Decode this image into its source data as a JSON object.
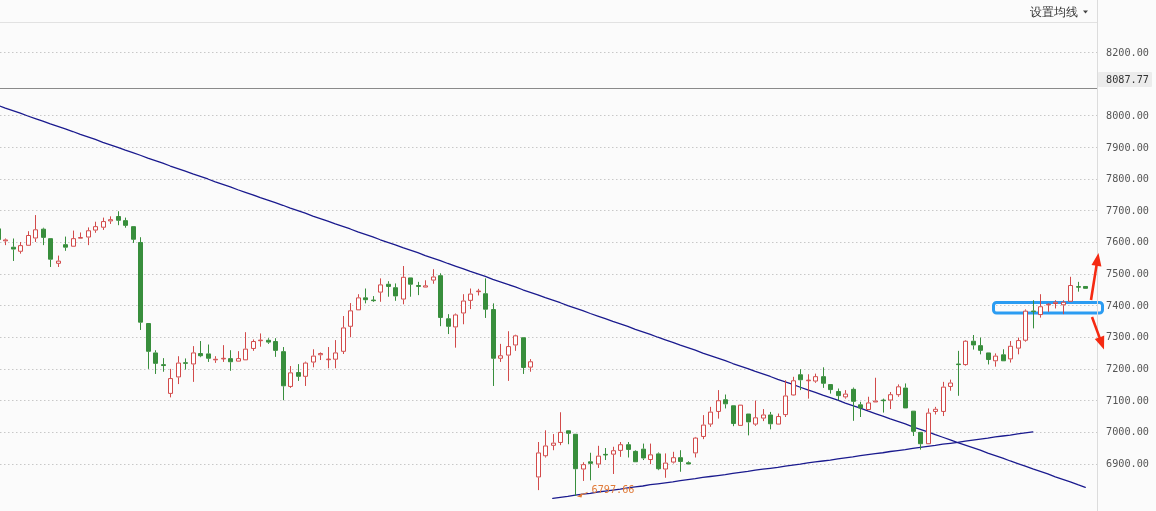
{
  "chart_data": {
    "type": "candlestick",
    "categories": [
      null,
      null,
      null,
      null,
      null,
      null,
      null,
      null,
      null,
      null,
      null,
      null,
      null,
      null,
      null,
      null,
      null,
      null,
      null,
      null,
      null,
      null,
      null,
      null,
      null,
      null,
      null,
      null,
      null,
      null,
      null,
      null,
      null,
      null,
      null,
      null,
      null,
      null,
      null,
      null,
      null,
      null,
      null,
      null,
      null,
      null,
      null,
      null,
      null,
      null,
      null,
      null,
      null,
      null,
      null,
      null,
      null,
      null,
      null,
      null,
      null,
      null,
      null,
      null,
      null,
      null,
      null,
      null,
      null,
      null,
      null,
      null,
      null,
      null,
      null,
      null,
      null,
      null,
      null,
      null,
      null,
      null,
      null,
      null,
      null,
      null,
      null,
      null,
      null,
      null,
      null,
      null,
      null,
      null,
      null,
      null,
      null,
      null,
      null,
      null,
      null,
      null,
      null,
      null,
      null,
      null,
      null,
      null,
      null,
      null,
      null,
      null,
      null,
      null,
      null,
      null,
      null,
      null,
      null,
      null,
      null,
      null,
      null,
      null,
      null,
      null,
      null,
      null,
      null,
      null,
      null,
      null,
      null,
      null,
      null,
      null,
      null,
      null,
      null,
      null,
      null,
      null,
      null,
      null,
      null,
      null
    ],
    "ohlc": [
      [
        7643,
        7646,
        7600,
        7606
      ],
      [
        7602,
        7611,
        7590,
        7608
      ],
      [
        7585,
        7611,
        7540,
        7576
      ],
      [
        7569,
        7600,
        7563,
        7590
      ],
      [
        7588,
        7634,
        7588,
        7622
      ],
      [
        7611,
        7685,
        7600,
        7640
      ],
      [
        7642,
        7645,
        7590,
        7613
      ],
      [
        7612,
        7612,
        7521,
        7544
      ],
      [
        7531,
        7557,
        7521,
        7541
      ],
      [
        7593,
        7617,
        7572,
        7582
      ],
      [
        7585,
        7636,
        7585,
        7612
      ],
      [
        7611,
        7630,
        7611,
        7615
      ],
      [
        7614,
        7646,
        7590,
        7637
      ],
      [
        7636,
        7664,
        7629,
        7650
      ],
      [
        7645,
        7677,
        7638,
        7666
      ],
      [
        7665,
        7681,
        7657,
        7672
      ],
      [
        7682,
        7697,
        7653,
        7667
      ],
      [
        7669,
        7677,
        7645,
        7651
      ],
      [
        7650,
        7650,
        7597,
        7607
      ],
      [
        7600,
        7615,
        7322,
        7345
      ],
      [
        7344,
        7344,
        7199,
        7253
      ],
      [
        7251,
        7258,
        7183,
        7215
      ],
      [
        7214,
        7233,
        7190,
        7208
      ],
      [
        7120,
        7199,
        7109,
        7170
      ],
      [
        7172,
        7239,
        7151,
        7219
      ],
      [
        7220,
        7232,
        7197,
        7215
      ],
      [
        7213,
        7271,
        7158,
        7251
      ],
      [
        7249,
        7287,
        7236,
        7239
      ],
      [
        7248,
        7276,
        7221,
        7231
      ],
      [
        7226,
        7239,
        7218,
        7231
      ],
      [
        7230,
        7274,
        7221,
        7233
      ],
      [
        7233,
        7258,
        7193,
        7220
      ],
      [
        7222,
        7255,
        7222,
        7233
      ],
      [
        7226,
        7315,
        7226,
        7263
      ],
      [
        7262,
        7292,
        7256,
        7287
      ],
      [
        7287,
        7311,
        7269,
        7291
      ],
      [
        7291,
        7296,
        7278,
        7282
      ],
      [
        7287,
        7296,
        7237,
        7256
      ],
      [
        7255,
        7268,
        7100,
        7144
      ],
      [
        7142,
        7208,
        7139,
        7188
      ],
      [
        7189,
        7214,
        7161,
        7174
      ],
      [
        7174,
        7222,
        7145,
        7219
      ],
      [
        7219,
        7261,
        7204,
        7241
      ],
      [
        7242,
        7251,
        7227,
        7249
      ],
      [
        7228,
        7268,
        7201,
        7230
      ],
      [
        7228,
        7290,
        7201,
        7251
      ],
      [
        7253,
        7366,
        7246,
        7330
      ],
      [
        7332,
        7407,
        7299,
        7384
      ],
      [
        7384,
        7435,
        7384,
        7425
      ],
      [
        7425,
        7453,
        7406,
        7416
      ],
      [
        7417,
        7429,
        7411,
        7414
      ],
      [
        7440,
        7485,
        7411,
        7466
      ],
      [
        7468,
        7476,
        7427,
        7458
      ],
      [
        7457,
        7469,
        7414,
        7428
      ],
      [
        7418,
        7524,
        7403,
        7490
      ],
      [
        7488,
        7488,
        7427,
        7465
      ],
      [
        7464,
        7474,
        7432,
        7458
      ],
      [
        7456,
        7479,
        7456,
        7463
      ],
      [
        7478,
        7514,
        7468,
        7491
      ],
      [
        7495,
        7501,
        7334,
        7360
      ],
      [
        7359,
        7372,
        7309,
        7332
      ],
      [
        7330,
        7374,
        7266,
        7371
      ],
      [
        7374,
        7435,
        7340,
        7415
      ],
      [
        7414,
        7453,
        7388,
        7437
      ],
      [
        7442,
        7452,
        7431,
        7446
      ],
      [
        7438,
        7485,
        7360,
        7386
      ],
      [
        7388,
        7406,
        7145,
        7231
      ],
      [
        7231,
        7278,
        7221,
        7242
      ],
      [
        7241,
        7318,
        7161,
        7271
      ],
      [
        7273,
        7307,
        7256,
        7305
      ],
      [
        7299,
        7299,
        7183,
        7202
      ],
      [
        7203,
        7230,
        7190,
        7223
      ],
      [
        6856,
        6968,
        6816,
        6935
      ],
      [
        6923,
        7005,
        6919,
        6957
      ],
      [
        6956,
        6993,
        6942,
        6966
      ],
      [
        6965,
        7062,
        6958,
        7000
      ],
      [
        7005,
        7005,
        6961,
        6994
      ],
      [
        6994,
        6994,
        6797.66,
        6882
      ],
      [
        6881,
        6904,
        6845,
        6898
      ],
      [
        6907,
        6934,
        6847,
        6899
      ],
      [
        6897,
        6956,
        6886,
        6925
      ],
      [
        6929,
        6949,
        6911,
        6927
      ],
      [
        6928,
        6953,
        6867,
        6942
      ],
      [
        6940,
        6968,
        6921,
        6961
      ],
      [
        6961,
        6968,
        6919,
        6943
      ],
      [
        6940,
        6942,
        6904,
        6904
      ],
      [
        6947,
        6963,
        6911,
        6916
      ],
      [
        6911,
        6963,
        6898,
        6929
      ],
      [
        6932,
        6935,
        6879,
        6882
      ],
      [
        6881,
        6932,
        6855,
        6903
      ],
      [
        6903,
        6937,
        6900,
        6920
      ],
      [
        6920,
        6942,
        6874,
        6905
      ],
      [
        6904,
        6907,
        6897,
        6897
      ],
      [
        6932,
        6984,
        6919,
        6982
      ],
      [
        6984,
        7053,
        6977,
        7023
      ],
      [
        7023,
        7079,
        7016,
        7064
      ],
      [
        7063,
        7132,
        7042,
        7100
      ],
      [
        7103,
        7118,
        7074,
        7087
      ],
      [
        7084,
        7084,
        7018,
        7025
      ],
      [
        7019,
        7086,
        7019,
        7086
      ],
      [
        7058,
        7058,
        6989,
        7030
      ],
      [
        7023,
        7099,
        7019,
        7046
      ],
      [
        7042,
        7072,
        7034,
        7055
      ],
      [
        7055,
        7063,
        7008,
        7024
      ],
      [
        7023,
        7058,
        7023,
        7050
      ],
      [
        7053,
        7163,
        7047,
        7115
      ],
      [
        7115,
        7174,
        7114,
        7163
      ],
      [
        7182,
        7198,
        7132,
        7163
      ],
      [
        7161,
        7182,
        7105,
        7164
      ],
      [
        7159,
        7184,
        7155,
        7176
      ],
      [
        7176,
        7204,
        7139,
        7152
      ],
      [
        7151,
        7151,
        7121,
        7132
      ],
      [
        7129,
        7137,
        7100,
        7113
      ],
      [
        7109,
        7132,
        7105,
        7121
      ],
      [
        7136,
        7140,
        7035,
        7095
      ],
      [
        7087,
        7095,
        7047,
        7074
      ],
      [
        7069,
        7111,
        7069,
        7093
      ],
      [
        7093,
        7171,
        7093,
        7099
      ],
      [
        7101,
        7105,
        7061,
        7098
      ],
      [
        7099,
        7126,
        7072,
        7119
      ],
      [
        7116,
        7150,
        7111,
        7144
      ],
      [
        7140,
        7153,
        7074,
        7074
      ],
      [
        7067,
        7067,
        6987,
        7000
      ],
      [
        7000,
        7000,
        6944,
        6961
      ],
      [
        6961,
        7074,
        6961,
        7061
      ],
      [
        7063,
        7079,
        7055,
        7073
      ],
      [
        7063,
        7158,
        7050,
        7143
      ],
      [
        7142,
        7165,
        7130,
        7156
      ],
      [
        7215,
        7256,
        7114,
        7212
      ],
      [
        7211,
        7290,
        7209,
        7288
      ],
      [
        7288,
        7306,
        7260,
        7273
      ],
      [
        7274,
        7298,
        7245,
        7256
      ],
      [
        7251,
        7251,
        7213,
        7227
      ],
      [
        7223,
        7248,
        7206,
        7241
      ],
      [
        7245,
        7261,
        7223,
        7223
      ],
      [
        7229,
        7287,
        7219,
        7272
      ],
      [
        7263,
        7298,
        7245,
        7290
      ],
      [
        7288,
        7387,
        7285,
        7383
      ],
      [
        7383,
        7416,
        7327,
        7379
      ],
      [
        7369,
        7435,
        7361,
        7397
      ],
      [
        7400,
        7406,
        7379,
        7404
      ],
      [
        7404,
        7416,
        7390,
        7411
      ],
      [
        7400,
        7416,
        7372,
        7411
      ],
      [
        7411,
        7490,
        7411,
        7464
      ],
      [
        7459,
        7474,
        7443,
        7457
      ],
      [
        7461,
        7461,
        7452,
        7452
      ]
    ],
    "colors": [
      "#388e3c",
      "#d24a4a",
      "#388e3c",
      "#d24a4a",
      "#d24a4a",
      "#d24a4a",
      "#388e3c",
      "#388e3c",
      "#d24a4a",
      "#388e3c",
      "#d24a4a",
      "#d24a4a",
      "#d24a4a",
      "#d24a4a",
      "#d24a4a",
      "#d24a4a",
      "#388e3c",
      "#388e3c",
      "#388e3c",
      "#388e3c",
      "#388e3c",
      "#388e3c",
      "#388e3c",
      "#d24a4a",
      "#d24a4a",
      "#388e3c",
      "#d24a4a",
      "#388e3c",
      "#388e3c",
      "#d24a4a",
      "#d24a4a",
      "#388e3c",
      "#d24a4a",
      "#d24a4a",
      "#d24a4a",
      "#d24a4a",
      "#388e3c",
      "#388e3c",
      "#388e3c",
      "#d24a4a",
      "#388e3c",
      "#d24a4a",
      "#d24a4a",
      "#d24a4a",
      "#d24a4a",
      "#d24a4a",
      "#d24a4a",
      "#d24a4a",
      "#d24a4a",
      "#388e3c",
      "#388e3c",
      "#d24a4a",
      "#388e3c",
      "#388e3c",
      "#d24a4a",
      "#388e3c",
      "#388e3c",
      "#d24a4a",
      "#d24a4a",
      "#388e3c",
      "#388e3c",
      "#d24a4a",
      "#d24a4a",
      "#d24a4a",
      "#d24a4a",
      "#388e3c",
      "#388e3c",
      "#d24a4a",
      "#d24a4a",
      "#d24a4a",
      "#388e3c",
      "#d24a4a",
      "#d24a4a",
      "#d24a4a",
      "#d24a4a",
      "#d24a4a",
      "#388e3c",
      "#388e3c",
      "#d24a4a",
      "#388e3c",
      "#d24a4a",
      "#388e3c",
      "#d24a4a",
      "#d24a4a",
      "#388e3c",
      "#388e3c",
      "#388e3c",
      "#d24a4a",
      "#388e3c",
      "#d24a4a",
      "#d24a4a",
      "#388e3c",
      "#388e3c",
      "#d24a4a",
      "#d24a4a",
      "#d24a4a",
      "#d24a4a",
      "#388e3c",
      "#388e3c",
      "#d24a4a",
      "#388e3c",
      "#d24a4a",
      "#d24a4a",
      "#388e3c",
      "#d24a4a",
      "#d24a4a",
      "#d24a4a",
      "#388e3c",
      "#d24a4a",
      "#d24a4a",
      "#388e3c",
      "#388e3c",
      "#388e3c",
      "#d24a4a",
      "#388e3c",
      "#388e3c",
      "#d24a4a",
      "#d24a4a",
      "#388e3c",
      "#d24a4a",
      "#d24a4a",
      "#388e3c",
      "#388e3c",
      "#388e3c",
      "#d24a4a",
      "#d24a4a",
      "#d24a4a",
      "#d24a4a",
      "#388e3c",
      "#d24a4a",
      "#388e3c",
      "#388e3c",
      "#388e3c",
      "#d24a4a",
      "#388e3c",
      "#d24a4a",
      "#d24a4a",
      "#d24a4a",
      "#388e3c",
      "#d24a4a",
      "#d24a4a",
      "#d24a4a",
      "#d24a4a",
      "#d24a4a",
      "#388e3c",
      "#388e3c"
    ],
    "series": [
      {
        "type": "line",
        "color": "#1a1a8e",
        "values": [
          8032,
          8023,
          8015,
          8007,
          7998,
          7990,
          7982,
          7973,
          7965,
          7957,
          7949,
          7940,
          7932,
          7924,
          7915,
          7907,
          7899,
          7890,
          7882,
          7874,
          7865,
          7857,
          7849,
          7840,
          7832,
          7824,
          7815,
          7807,
          7799,
          7790,
          7782,
          7774,
          7765,
          7757,
          7749,
          7740,
          7732,
          7724,
          7716,
          7707,
          7699,
          7691,
          7682,
          7674,
          7666,
          7657,
          7649,
          7641,
          7632,
          7624,
          7616,
          7607,
          7599,
          7591,
          7582,
          7574,
          7566,
          7557,
          7549,
          7541,
          7532,
          7524,
          7516,
          7507,
          7499,
          7491,
          7482,
          7474,
          7466,
          7458,
          7449,
          7441,
          7433,
          7424,
          7416,
          7408,
          7399,
          7391,
          7383,
          7374,
          7366,
          7358,
          7349,
          7341,
          7333,
          7324,
          7316,
          7308,
          7299,
          7291,
          7283,
          7274,
          7266,
          7258,
          7249,
          7241,
          7233,
          7225,
          7216,
          7208,
          7200,
          7191,
          7183,
          7175,
          7166,
          7158,
          7150,
          7141,
          7133,
          7125,
          7116,
          7108,
          7100,
          7091,
          7083,
          7075,
          7066,
          7058,
          7050,
          7041,
          7033,
          7025,
          7016,
          7008,
          7000,
          6991,
          6983,
          6975,
          6966,
          6958,
          6950,
          6942,
          6933,
          6925,
          6917,
          6908,
          6900,
          6892,
          6883,
          6875,
          6867,
          6858,
          6850,
          6842,
          6833,
          6825
        ]
      },
      {
        "type": "line",
        "color": "#1a1a8e",
        "values": [
          null,
          null,
          null,
          null,
          null,
          null,
          null,
          null,
          null,
          null,
          null,
          null,
          null,
          null,
          null,
          null,
          null,
          null,
          null,
          null,
          null,
          null,
          null,
          null,
          null,
          null,
          null,
          null,
          null,
          null,
          null,
          null,
          null,
          null,
          null,
          null,
          null,
          null,
          null,
          null,
          null,
          null,
          null,
          null,
          null,
          null,
          null,
          null,
          null,
          null,
          null,
          null,
          null,
          null,
          null,
          null,
          null,
          null,
          null,
          null,
          null,
          null,
          null,
          null,
          null,
          null,
          null,
          null,
          null,
          null,
          null,
          null,
          null,
          null,
          6790,
          6793,
          6796,
          6800,
          6803,
          6806,
          6810,
          6813,
          6816,
          6819,
          6823,
          6826,
          6829,
          6833,
          6836,
          6839,
          6842,
          6846,
          6849,
          6852,
          6856,
          6859,
          6862,
          6865,
          6869,
          6872,
          6875,
          6879,
          6882,
          6885,
          6888,
          6892,
          6895,
          6898,
          6902,
          6905,
          6908,
          6911,
          6915,
          6918,
          6921,
          6925,
          6928,
          6931,
          6934,
          6938,
          6941,
          6944,
          6948,
          6951,
          6954,
          6957,
          6961,
          6964,
          6967,
          6971,
          6974,
          6977,
          6980,
          6984,
          6987,
          6990,
          6994,
          6997,
          7000,
          null,
          null,
          null,
          null,
          null,
          null,
          null
        ]
      }
    ],
    "ylim": [
      6750,
      8295
    ],
    "yticks": [
      {
        "value": 6900,
        "label": "6900.00"
      },
      {
        "value": 7000,
        "label": "7000.00"
      },
      {
        "value": 7100,
        "label": "7100.00"
      },
      {
        "value": 7200,
        "label": "7200.00"
      },
      {
        "value": 7300,
        "label": "7300.00"
      },
      {
        "value": 7400,
        "label": "7400.00"
      },
      {
        "value": 7500,
        "label": "7500.00"
      },
      {
        "value": 7600,
        "label": "7600.00"
      },
      {
        "value": 7700,
        "label": "7700.00"
      },
      {
        "value": 7800,
        "label": "7800.00"
      },
      {
        "value": 7900,
        "label": "7900.00"
      },
      {
        "value": 8000,
        "label": "8000.00"
      },
      {
        "value": 8200,
        "label": "8200.00"
      }
    ],
    "grid": "y",
    "tick_labels": "y",
    "ref_lines": [
      {
        "axis": "y",
        "value": 8087.77,
        "label": "8087.77",
        "color": "#8a8a8a"
      }
    ],
    "annotations": [
      "设置均线",
      "6797.66"
    ]
  }
}
